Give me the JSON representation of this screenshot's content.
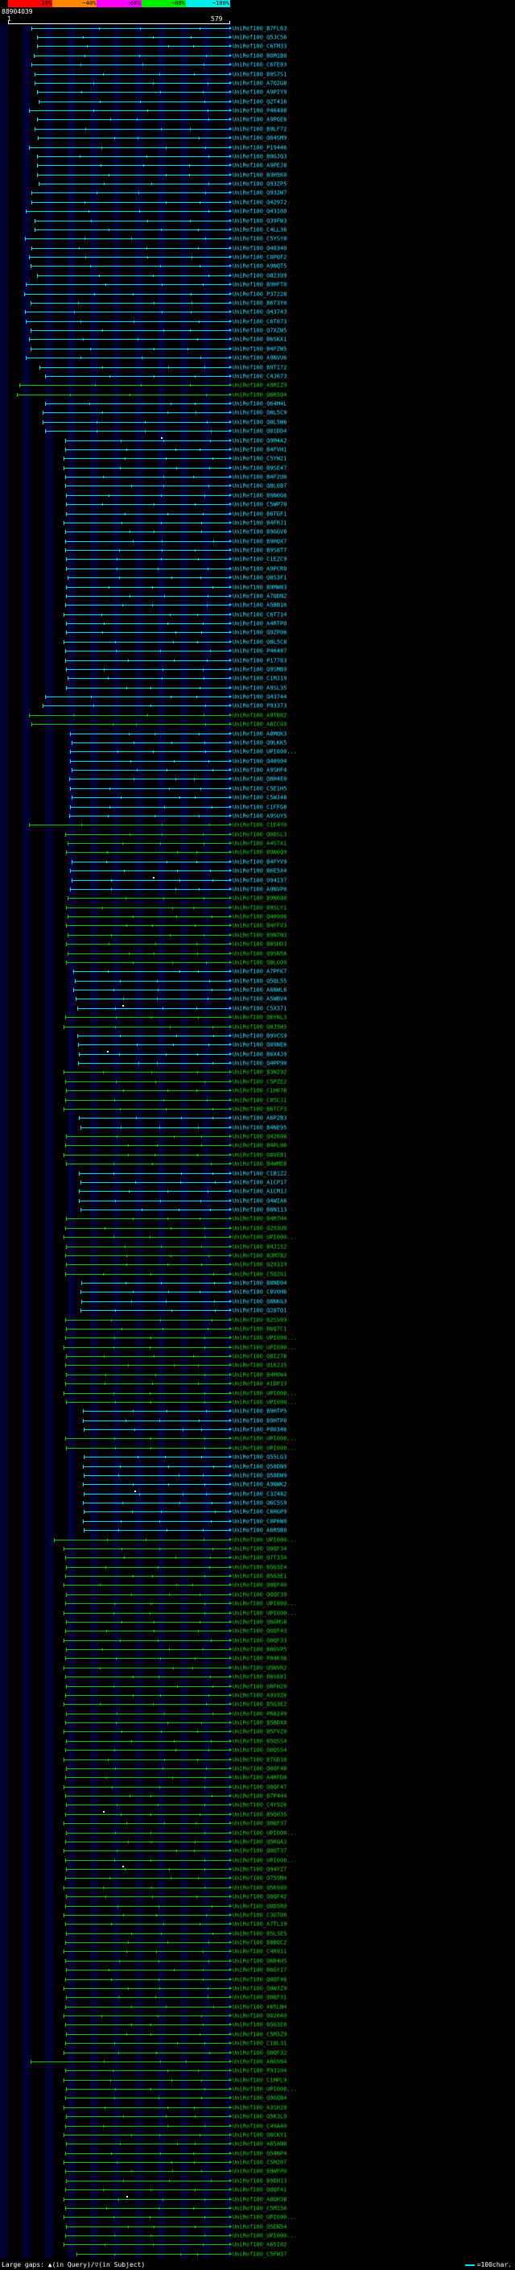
{
  "header": {
    "query_id": "88904039",
    "ruler_start": "1",
    "ruler_end": "579"
  },
  "key": {
    "labels": [
      "20%",
      "~40%",
      "~60%",
      "~80%",
      "~100%"
    ],
    "colors": [
      "#ff0000",
      "#ff8800",
      "#ff00ff",
      "#00ee00",
      "#00eeee"
    ]
  },
  "footer": {
    "gaps_legend": "Large gaps: ▲(in Query)/▽(in Subject)",
    "scale_legend": "=100char."
  },
  "colors": {
    "cyan": "#00dcff",
    "green": "#00cc00",
    "background": "#000000",
    "stripe": "#000033",
    "ruler": "#ffffff"
  },
  "chart_data": {
    "type": "bar",
    "orientation": "horizontal-span",
    "x_axis": {
      "min": 1,
      "max": 579
    },
    "legend": "color = percent identity (red 20% ... cyan ~100%)",
    "label_prefix": "UniRef100_",
    "rows": [
      [
        "B7FL63",
        "c",
        62
      ],
      [
        "Q5JC56",
        "c",
        76
      ],
      [
        "C6TM33",
        "c",
        76
      ],
      [
        "B0M1B0",
        "c",
        69
      ],
      [
        "C6TE03",
        "c",
        62
      ],
      [
        "B9S7S1",
        "c",
        71
      ],
      [
        "A7Q2G8",
        "c",
        71
      ],
      [
        "A9PIY9",
        "c",
        76
      ],
      [
        "Q2T416",
        "c",
        81
      ],
      [
        "P46488",
        "c",
        55
      ],
      [
        "A9PGE6",
        "c",
        76
      ],
      [
        "B9LF72",
        "c",
        71
      ],
      [
        "Q04SM9",
        "c",
        79
      ],
      [
        "P19446",
        "c",
        55
      ],
      [
        "B9GJQ3",
        "c",
        76
      ],
      [
        "A9PEJ8",
        "c",
        76
      ],
      [
        "B3H5K0",
        "c",
        76
      ],
      [
        "Q93ZP5",
        "c",
        81
      ],
      [
        "Q932W7",
        "c",
        62
      ],
      [
        "Q42972",
        "c",
        62
      ],
      [
        "Q43100",
        "c",
        48
      ],
      [
        "Q39FW3",
        "c",
        71
      ],
      [
        "C4LL36",
        "c",
        71
      ],
      [
        "C5YSY8",
        "c",
        45
      ],
      [
        "Q40340",
        "c",
        62
      ],
      [
        "C0PQF2",
        "c",
        55
      ],
      [
        "A9NQT5",
        "c",
        60
      ],
      [
        "O82399",
        "c",
        76
      ],
      [
        "B9HFT0",
        "c",
        48
      ],
      [
        "P37228",
        "c",
        42
      ],
      [
        "B6T3Y0",
        "c",
        60
      ],
      [
        "Q43743",
        "c",
        45
      ],
      [
        "C6T673",
        "c",
        48
      ],
      [
        "Q7XZW5",
        "c",
        60
      ],
      [
        "B6SKX1",
        "c",
        55
      ],
      [
        "B4FZW5",
        "c",
        60
      ],
      [
        "A9NVU6",
        "c",
        48
      ],
      [
        "B9T172",
        "c",
        84
      ],
      [
        "C4J673",
        "c",
        97
      ],
      [
        "A9RIZ9",
        "g",
        30
      ],
      [
        "Q6R5Q4",
        "g",
        24
      ],
      [
        "Q64M4L",
        "c",
        97
      ],
      [
        "Q8L5C9",
        "c",
        92
      ],
      [
        "Q8L5W6",
        "c",
        92
      ],
      [
        "Q01DD4",
        "c",
        97
      ],
      [
        "Q9M4A2",
        "c",
        150,
        [
          400
        ]
      ],
      [
        "B4FVH1",
        "c",
        150
      ],
      [
        "C5YW21",
        "c",
        147
      ],
      [
        "B9SE47",
        "c",
        147
      ],
      [
        "B4F2U0",
        "c",
        150
      ],
      [
        "Q8L6B7",
        "c",
        150
      ],
      [
        "B9N0G6",
        "c",
        153
      ],
      [
        "C5WP70",
        "c",
        153
      ],
      [
        "B6TGF1",
        "c",
        153
      ],
      [
        "B4FRJ1",
        "c",
        147
      ],
      [
        "B9GGV8",
        "c",
        150
      ],
      [
        "B9HQX7",
        "c",
        150
      ],
      [
        "B9S8T7",
        "c",
        150
      ],
      [
        "C1EZC9",
        "c",
        153
      ],
      [
        "A9PCR0",
        "c",
        153
      ],
      [
        "Q8S3F1",
        "c",
        156
      ],
      [
        "B9MW83",
        "c",
        153
      ],
      [
        "A7QDN2",
        "c",
        153
      ],
      [
        "A5BB16",
        "c",
        150
      ],
      [
        "C6T714",
        "c",
        147
      ],
      [
        "A4RTP0",
        "c",
        153
      ],
      [
        "Q9ZP06",
        "c",
        153
      ],
      [
        "Q8L5C8",
        "c",
        147
      ],
      [
        "P46487",
        "c",
        150
      ],
      [
        "P17783",
        "c",
        150
      ],
      [
        "Q9SMB9",
        "c",
        153
      ],
      [
        "C1MJ19",
        "c",
        156
      ],
      [
        "A9SL35",
        "c",
        153
      ],
      [
        "Q43744",
        "c",
        97
      ],
      [
        "P93373",
        "c",
        92
      ],
      [
        "A9TBX2",
        "g",
        55
      ],
      [
        "A8ICG9",
        "g",
        62
      ],
      [
        "A8MQK3",
        "c",
        163
      ],
      [
        "Q9LKK5",
        "c",
        166
      ],
      [
        "UPI000...",
        "c",
        163
      ],
      [
        "Q48904",
        "c",
        163
      ],
      [
        "A9SHF4",
        "c",
        166
      ],
      [
        "Q8H4E0",
        "c",
        160
      ],
      [
        "C5E1H5",
        "c",
        163
      ],
      [
        "C5WJ48",
        "c",
        166
      ],
      [
        "C1FFG8",
        "c",
        163
      ],
      [
        "A9SUY5",
        "c",
        160
      ],
      [
        "C1E4Y0",
        "g",
        55
      ],
      [
        "Q0DSL3",
        "g",
        150
      ],
      [
        "A4S7X1",
        "g",
        156
      ],
      [
        "B9N6Q9",
        "g",
        153
      ],
      [
        "B4FYV9",
        "c",
        166
      ],
      [
        "B6E5X4",
        "c",
        163
      ],
      [
        "O94137",
        "c",
        166,
        [
          380
        ]
      ],
      [
        "A9NVP0",
        "c",
        163
      ],
      [
        "B9N6Q0",
        "g",
        156
      ],
      [
        "B9SLY1",
        "g",
        153
      ],
      [
        "Q48906",
        "g",
        156
      ],
      [
        "B4FFV3",
        "g",
        153
      ],
      [
        "B9N7N3",
        "g",
        156
      ],
      [
        "B6SHD3",
        "g",
        153
      ],
      [
        "Q9SN56",
        "g",
        156
      ],
      [
        "Q8LG09",
        "g",
        153
      ],
      [
        "A7PFK7",
        "c",
        172
      ],
      [
        "Q5QL55",
        "c",
        175
      ],
      [
        "A6NWL6",
        "c",
        172
      ],
      [
        "A5WBV4",
        "c",
        178
      ],
      [
        "C5X371",
        "c",
        181,
        [
          300
        ]
      ],
      [
        "Q6YNL3",
        "g",
        150
      ],
      [
        "Q0J5H3",
        "g",
        147
      ],
      [
        "B9VCS9",
        "c",
        181
      ],
      [
        "Q09NE6",
        "c",
        184
      ],
      [
        "B0X4J9",
        "c",
        187,
        [
          260
        ]
      ],
      [
        "Q4PP90",
        "c",
        184
      ],
      [
        "B3N292",
        "g",
        147
      ],
      [
        "C5PZE2",
        "g",
        150
      ],
      [
        "C1H678",
        "g",
        153
      ],
      [
        "C0SCJ1",
        "g",
        150
      ],
      [
        "B6TCF3",
        "g",
        147
      ],
      [
        "A6P2B3",
        "c",
        187
      ],
      [
        "B4NE95",
        "c",
        190
      ],
      [
        "Q42606",
        "g",
        153
      ],
      [
        "B4PL06",
        "g",
        150
      ],
      [
        "Q8VEB1",
        "g",
        147
      ],
      [
        "B4WME8",
        "g",
        153
      ],
      [
        "C1B1Z2",
        "c",
        187
      ],
      [
        "A1CP17",
        "c",
        190
      ],
      [
        "A1CM1J",
        "c",
        187
      ],
      [
        "Q4WIA6",
        "c",
        187
      ],
      [
        "B8N113",
        "c",
        190
      ],
      [
        "B4R7H4",
        "g",
        153
      ],
      [
        "Q293U0",
        "g",
        150
      ],
      [
        "UPI000...",
        "g",
        147
      ],
      [
        "B4J152",
        "g",
        153
      ],
      [
        "B3M7B2",
        "g",
        150
      ],
      [
        "Q29319",
        "g",
        153
      ],
      [
        "C5Q2G1",
        "g",
        150
      ],
      [
        "B8ND04",
        "c",
        193
      ],
      [
        "C8V0H6",
        "c",
        190
      ],
      [
        "Q8NKG3",
        "c",
        193
      ],
      [
        "Q28TQ1",
        "c",
        190
      ],
      [
        "B2SV69",
        "g",
        150
      ],
      [
        "B6Q7C1",
        "g",
        153
      ],
      [
        "UPI000...",
        "g",
        150
      ],
      [
        "UPI000...",
        "g",
        147
      ],
      [
        "Q8I278",
        "g",
        153
      ],
      [
        "Q16215",
        "g",
        150
      ],
      [
        "B4M0W4",
        "g",
        153
      ],
      [
        "A1DP13",
        "g",
        150
      ],
      [
        "UPI000...",
        "g",
        147
      ],
      [
        "UPI000...",
        "g",
        153
      ],
      [
        "B9HTP5",
        "c",
        196
      ],
      [
        "B9HTP0",
        "c",
        196
      ],
      [
        "P00346",
        "c",
        199
      ],
      [
        "UPI000...",
        "g",
        150
      ],
      [
        "UPI000...",
        "g",
        153
      ],
      [
        "Q55LG3",
        "c",
        199
      ],
      [
        "Q58DN9",
        "c",
        196
      ],
      [
        "Q58DW9",
        "c",
        199
      ],
      [
        "A9NWK2",
        "c",
        196
      ],
      [
        "C3Z482",
        "c",
        199,
        [
          330
        ]
      ],
      [
        "Q6C5S9",
        "c",
        196
      ],
      [
        "C6HGP9",
        "c",
        199
      ],
      [
        "C0P6W0",
        "c",
        196
      ],
      [
        "A6R9B0",
        "c",
        199
      ],
      [
        "UPI000...",
        "g",
        120
      ],
      [
        "Q0QF34",
        "g",
        147
      ],
      [
        "Q7T334",
        "g",
        150
      ],
      [
        "B5G3E4",
        "g",
        153
      ],
      [
        "B5G3E1",
        "g",
        150
      ],
      [
        "Q0QF40",
        "g",
        147
      ],
      [
        "Q0QF39",
        "g",
        153
      ],
      [
        "UPI000...",
        "g",
        150
      ],
      [
        "UPI000...",
        "g",
        147
      ],
      [
        "Q6GMS8",
        "g",
        153
      ],
      [
        "Q0QF43",
        "g",
        150
      ],
      [
        "Q0QF33",
        "g",
        147
      ],
      [
        "B6GVP5",
        "g",
        153
      ],
      [
        "P04636",
        "g",
        150
      ],
      [
        "Q5NVR2",
        "g",
        147
      ],
      [
        "B6V8X1",
        "g",
        150
      ],
      [
        "Q8FH20",
        "g",
        153
      ],
      [
        "A9V9Z6",
        "g",
        150
      ],
      [
        "B5G3E2",
        "g",
        147
      ],
      [
        "P68249",
        "g",
        153
      ],
      [
        "B5BDX0",
        "g",
        150
      ],
      [
        "B5FVZ0",
        "g",
        147
      ],
      [
        "B5QSS4",
        "g",
        153
      ],
      [
        "Q0QS54",
        "g",
        150
      ],
      [
        "B7GD18",
        "g",
        147
      ],
      [
        "Q0QF48",
        "g",
        153
      ],
      [
        "A4RFD8",
        "g",
        150
      ],
      [
        "Q0QF47",
        "g",
        147
      ],
      [
        "B7P444",
        "g",
        150
      ],
      [
        "C4Y926",
        "g",
        153
      ],
      [
        "B5Q035",
        "g",
        150,
        [
          250
        ]
      ],
      [
        "Q0QF37",
        "g",
        147
      ],
      [
        "UPI000...",
        "g",
        153
      ],
      [
        "Q5KQA3",
        "g",
        150
      ],
      [
        "Q0QT37",
        "g",
        147
      ],
      [
        "UPI000...",
        "g",
        150
      ],
      [
        "Q94YZ7",
        "g",
        153,
        [
          300
        ]
      ],
      [
        "Q759M4",
        "g",
        150
      ],
      [
        "Q5K9X0",
        "g",
        147
      ],
      [
        "Q0QF42",
        "g",
        153
      ],
      [
        "Q0D5R0",
        "g",
        150
      ],
      [
        "C3U7D0",
        "g",
        147
      ],
      [
        "A7TL19",
        "g",
        150
      ],
      [
        "B5L3E5",
        "g",
        153
      ],
      [
        "B8BQC2",
        "g",
        150
      ],
      [
        "C4R911",
        "g",
        147
      ],
      [
        "Q6B4U5",
        "g",
        150
      ],
      [
        "B6GY17",
        "g",
        153
      ],
      [
        "Q0QF46",
        "g",
        150
      ],
      [
        "Q0WJZ9",
        "g",
        147
      ],
      [
        "Q0QF31",
        "g",
        153
      ],
      [
        "A65LN4",
        "g",
        150
      ],
      [
        "O02640",
        "g",
        147
      ],
      [
        "B5G3E0",
        "g",
        150
      ],
      [
        "C5M3Z9",
        "g",
        153
      ],
      [
        "C18L31",
        "g",
        150
      ],
      [
        "Q0QF32",
        "g",
        147
      ],
      [
        "A6G984",
        "g",
        60
      ],
      [
        "P93104",
        "g",
        150
      ],
      [
        "C1MPL9",
        "g",
        147
      ],
      [
        "UPI000...",
        "g",
        153
      ],
      [
        "Q9GQB4",
        "g",
        150
      ],
      [
        "A31H28",
        "g",
        147
      ],
      [
        "Q5K3L9",
        "g",
        153
      ],
      [
        "C49A40",
        "g",
        150
      ],
      [
        "Q0CKY1",
        "g",
        147
      ],
      [
        "A65AN8",
        "g",
        153
      ],
      [
        "Q54NP4",
        "g",
        150
      ],
      [
        "C5M207",
        "g",
        147
      ],
      [
        "B9WFP0",
        "g",
        150
      ],
      [
        "B9DH13",
        "g",
        153
      ],
      [
        "Q0QF41",
        "g",
        150
      ],
      [
        "A8QH38",
        "g",
        147,
        [
          310
        ]
      ],
      [
        "C5M156",
        "g",
        150
      ],
      [
        "UPI000...",
        "g",
        147
      ],
      [
        "Q5EN54",
        "g",
        153
      ],
      [
        "UPI000...",
        "g",
        150
      ],
      [
        "A65I02",
        "g",
        147
      ],
      [
        "C5FW37",
        "g",
        180
      ]
    ]
  }
}
